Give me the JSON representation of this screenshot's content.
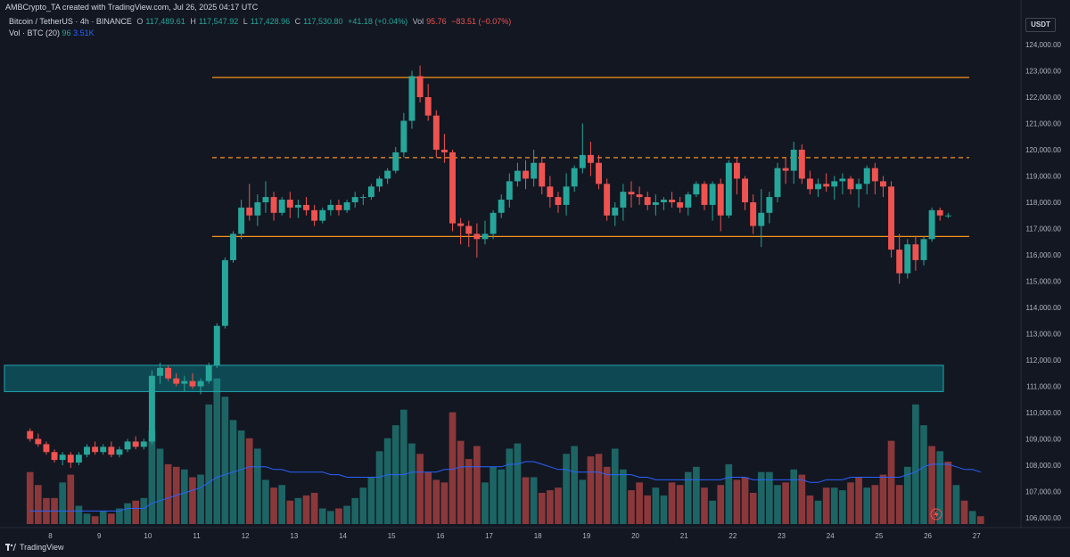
{
  "header": {
    "attribution": "AMBCrypto_TA created with TradingView.com, Jul 26, 2025 04:17 UTC",
    "symbol": "Bitcoin / TetherUS · 4h · BINANCE",
    "o_label": "O",
    "o": "117,489.61",
    "h_label": "H",
    "h": "117,547.92",
    "l_label": "L",
    "l": "117,428.96",
    "c_label": "C",
    "c": "117,530.80",
    "change": "+41.18 (+0.04%)",
    "vol_label": "Vol",
    "vol": "95.76",
    "vol_change": "−83.51 (−0.07%)",
    "vol_indicator": "Vol · BTC (20)",
    "vol_value": "96",
    "vol_ma": "3.51K",
    "currency": "USDT",
    "brand": "TradingView"
  },
  "colors": {
    "up": "#26a69a",
    "down": "#ef5350",
    "level": "#f7931a",
    "zone": "#0e5a63",
    "ma": "#2962ff",
    "bg": "#131722"
  },
  "chart_data": {
    "type": "candlestick",
    "y_ticks": [
      "124,000.00",
      "123,000.00",
      "122,000.00",
      "121,000.00",
      "120,000.00",
      "119,000.00",
      "118,000.00",
      "117,000.00",
      "116,000.00",
      "115,000.00",
      "114,000.00",
      "113,000.00",
      "112,000.00",
      "111,000.00",
      "110,000.00",
      "109,000.00",
      "108,000.00",
      "107,000.00",
      "106,000.00"
    ],
    "ylim": [
      105800,
      124500
    ],
    "x_ticks": [
      "8",
      "9",
      "10",
      "11",
      "12",
      "13",
      "14",
      "15",
      "16",
      "17",
      "18",
      "19",
      "20",
      "21",
      "22",
      "23",
      "24",
      "25",
      "26",
      "27"
    ],
    "start_day": 7.5,
    "candles_per_day": 6,
    "candles": [
      [
        109300,
        109400,
        108900,
        109000
      ],
      [
        109000,
        109200,
        108700,
        108800
      ],
      [
        108800,
        108900,
        108400,
        108500
      ],
      [
        108500,
        108600,
        108100,
        108200
      ],
      [
        108200,
        108500,
        108000,
        108400
      ],
      [
        108400,
        108500,
        107900,
        108100
      ],
      [
        108100,
        108500,
        108000,
        108400
      ],
      [
        108400,
        108800,
        108300,
        108700
      ],
      [
        108700,
        108900,
        108400,
        108500
      ],
      [
        108500,
        108800,
        108400,
        108700
      ],
      [
        108700,
        108900,
        108300,
        108400
      ],
      [
        108400,
        108700,
        108300,
        108600
      ],
      [
        108600,
        109000,
        108500,
        108900
      ],
      [
        108900,
        109100,
        108600,
        108700
      ],
      [
        108700,
        109000,
        108600,
        108900
      ],
      [
        108900,
        111600,
        108800,
        111400
      ],
      [
        111400,
        111900,
        111100,
        111700
      ],
      [
        111700,
        111800,
        111200,
        111300
      ],
      [
        111300,
        111500,
        111000,
        111100
      ],
      [
        111100,
        111400,
        110800,
        111200
      ],
      [
        111200,
        111500,
        110900,
        111000
      ],
      [
        111000,
        111300,
        110700,
        111200
      ],
      [
        111200,
        111900,
        111100,
        111800
      ],
      [
        111800,
        113400,
        111700,
        113300
      ],
      [
        113300,
        115900,
        113200,
        115800
      ],
      [
        115800,
        116900,
        115700,
        116800
      ],
      [
        116800,
        118100,
        116600,
        117800
      ],
      [
        117800,
        118700,
        117300,
        117500
      ],
      [
        117500,
        118300,
        117100,
        118000
      ],
      [
        118000,
        118800,
        117600,
        118200
      ],
      [
        118200,
        118400,
        117300,
        117600
      ],
      [
        117600,
        118200,
        117500,
        118100
      ],
      [
        118100,
        118400,
        117400,
        117800
      ],
      [
        117800,
        118100,
        117400,
        117900
      ],
      [
        117900,
        118200,
        117500,
        117700
      ],
      [
        117700,
        117900,
        117100,
        117300
      ],
      [
        117300,
        117800,
        117200,
        117700
      ],
      [
        117700,
        118100,
        117500,
        117900
      ],
      [
        117900,
        118100,
        117500,
        117700
      ],
      [
        117700,
        118100,
        117600,
        118000
      ],
      [
        118000,
        118400,
        117800,
        118200
      ],
      [
        118200,
        118300,
        117900,
        118200
      ],
      [
        118200,
        118700,
        118100,
        118600
      ],
      [
        118600,
        119000,
        118400,
        118900
      ],
      [
        118900,
        119300,
        118700,
        119200
      ],
      [
        119200,
        120100,
        119100,
        119900
      ],
      [
        119900,
        121400,
        119700,
        121100
      ],
      [
        121100,
        123000,
        120800,
        122800
      ],
      [
        122800,
        123200,
        121800,
        122000
      ],
      [
        122000,
        122500,
        121100,
        121300
      ],
      [
        121300,
        121500,
        119700,
        120000
      ],
      [
        120000,
        120600,
        119500,
        119900
      ],
      [
        119900,
        120000,
        116900,
        117200
      ],
      [
        117200,
        117400,
        116400,
        117100
      ],
      [
        117100,
        117300,
        116300,
        116800
      ],
      [
        116800,
        117200,
        115900,
        116600
      ],
      [
        116600,
        117300,
        116400,
        116800
      ],
      [
        116800,
        117700,
        116600,
        117600
      ],
      [
        117600,
        118300,
        117400,
        118100
      ],
      [
        118100,
        119100,
        117800,
        118800
      ],
      [
        118800,
        119500,
        118600,
        119200
      ],
      [
        119200,
        119600,
        118500,
        118900
      ],
      [
        118900,
        120000,
        118600,
        119500
      ],
      [
        119500,
        119700,
        118300,
        118600
      ],
      [
        118600,
        119000,
        117800,
        118200
      ],
      [
        118200,
        118400,
        117600,
        117900
      ],
      [
        117900,
        119100,
        117500,
        118600
      ],
      [
        118600,
        119400,
        118400,
        119300
      ],
      [
        119300,
        121000,
        119100,
        119800
      ],
      [
        119800,
        120300,
        119000,
        119500
      ],
      [
        119500,
        119800,
        118500,
        118700
      ],
      [
        118700,
        118900,
        117300,
        117500
      ],
      [
        117500,
        118000,
        117100,
        117800
      ],
      [
        117800,
        118700,
        117300,
        118400
      ],
      [
        118400,
        118800,
        117800,
        118300
      ],
      [
        118300,
        118600,
        117900,
        118200
      ],
      [
        118200,
        118400,
        117700,
        117900
      ],
      [
        117900,
        118300,
        117500,
        118000
      ],
      [
        118000,
        118200,
        117700,
        118100
      ],
      [
        118100,
        118400,
        117800,
        118000
      ],
      [
        118000,
        118200,
        117600,
        117800
      ],
      [
        117800,
        118400,
        117500,
        118300
      ],
      [
        118300,
        118800,
        118200,
        118700
      ],
      [
        118700,
        118800,
        117700,
        117900
      ],
      [
        117900,
        118800,
        117300,
        118700
      ],
      [
        118700,
        118900,
        116900,
        117500
      ],
      [
        117500,
        119600,
        117400,
        119500
      ],
      [
        119500,
        119700,
        118300,
        118900
      ],
      [
        118900,
        119000,
        117700,
        118000
      ],
      [
        118000,
        118300,
        116800,
        117100
      ],
      [
        117100,
        118500,
        116300,
        117600
      ],
      [
        117600,
        118400,
        117200,
        118200
      ],
      [
        118200,
        119500,
        118000,
        119300
      ],
      [
        119300,
        119700,
        118700,
        119200
      ],
      [
        119200,
        120300,
        118700,
        120000
      ],
      [
        120000,
        120200,
        118700,
        118900
      ],
      [
        118900,
        119200,
        118300,
        118500
      ],
      [
        118500,
        118900,
        118200,
        118700
      ],
      [
        118700,
        119100,
        118400,
        118600
      ],
      [
        118600,
        119000,
        118100,
        118800
      ],
      [
        118800,
        119100,
        118300,
        118900
      ],
      [
        118900,
        119000,
        118300,
        118500
      ],
      [
        118500,
        118900,
        117800,
        118700
      ],
      [
        118700,
        119400,
        118300,
        119300
      ],
      [
        119300,
        119500,
        118300,
        118800
      ],
      [
        118800,
        119000,
        118200,
        118600
      ],
      [
        118600,
        118800,
        115900,
        116200
      ],
      [
        116200,
        116800,
        114900,
        115300
      ],
      [
        115300,
        116600,
        115100,
        116400
      ],
      [
        116400,
        116700,
        115400,
        115800
      ],
      [
        115800,
        116700,
        115600,
        116600
      ],
      [
        116600,
        117800,
        116500,
        117700
      ],
      [
        117700,
        117800,
        117300,
        117500
      ],
      [
        117500,
        117600,
        117400,
        117500
      ]
    ],
    "volume": [
      20,
      15,
      10,
      10,
      16,
      19,
      7,
      4,
      3,
      5,
      4,
      6,
      8,
      9,
      10,
      36,
      29,
      23,
      22,
      21,
      18,
      19,
      46,
      56,
      49,
      40,
      36,
      33,
      29,
      17,
      14,
      15,
      9,
      10,
      11,
      12,
      6,
      5,
      6,
      7,
      10,
      14,
      18,
      28,
      33,
      38,
      44,
      31,
      27,
      20,
      17,
      16,
      43,
      32,
      25,
      30,
      16,
      22,
      21,
      29,
      31,
      18,
      18,
      12,
      13,
      14,
      27,
      30,
      17,
      26,
      27,
      22,
      29,
      21,
      13,
      16,
      11,
      14,
      11,
      16,
      15,
      20,
      22,
      14,
      9,
      15,
      23,
      17,
      18,
      12,
      20,
      20,
      15,
      16,
      21,
      19,
      11,
      9,
      14,
      14,
      13,
      16,
      18,
      14,
      15,
      19,
      32,
      15,
      22,
      46,
      38,
      30,
      28,
      24,
      15,
      9,
      5,
      3
    ],
    "volume_up": [
      false,
      false,
      false,
      false,
      true,
      false,
      true,
      true,
      false,
      true,
      false,
      true,
      true,
      false,
      true,
      true,
      true,
      false,
      false,
      true,
      false,
      true,
      true,
      true,
      true,
      true,
      true,
      false,
      true,
      true,
      false,
      true,
      false,
      true,
      false,
      false,
      true,
      true,
      false,
      true,
      true,
      true,
      true,
      true,
      true,
      true,
      true,
      true,
      false,
      false,
      false,
      false,
      false,
      false,
      false,
      false,
      true,
      true,
      true,
      true,
      true,
      false,
      true,
      false,
      false,
      false,
      true,
      true,
      true,
      false,
      false,
      false,
      true,
      true,
      false,
      false,
      false,
      true,
      true,
      false,
      false,
      true,
      true,
      false,
      true,
      false,
      true,
      false,
      false,
      false,
      true,
      true,
      true,
      false,
      true,
      false,
      false,
      true,
      false,
      true,
      true,
      false,
      false,
      true,
      false,
      false,
      false,
      false,
      true,
      true,
      true,
      false,
      true,
      false,
      true,
      false,
      true,
      false
    ],
    "volume_ma": [
      5,
      5,
      5,
      5,
      5,
      5,
      5,
      5,
      5,
      5,
      5,
      5,
      6,
      6,
      6,
      8,
      9,
      10,
      11,
      12,
      13,
      14,
      16,
      18,
      19,
      20,
      21,
      22,
      22,
      22,
      21,
      21,
      20,
      20,
      20,
      20,
      20,
      19,
      19,
      18,
      18,
      18,
      18,
      18,
      19,
      19,
      19,
      20,
      20,
      20,
      20,
      21,
      21,
      22,
      22,
      22,
      22,
      22,
      22,
      23,
      23,
      24,
      24,
      23,
      22,
      21,
      21,
      20,
      20,
      20,
      20,
      19,
      19,
      19,
      19,
      18,
      18,
      17,
      17,
      17,
      17,
      17,
      17,
      17,
      17,
      17,
      18,
      18,
      18,
      17,
      17,
      17,
      17,
      17,
      17,
      17,
      16,
      16,
      17,
      17,
      17,
      18,
      18,
      18,
      18,
      18,
      18,
      18,
      19,
      20,
      22,
      23,
      23,
      23,
      22,
      21,
      21,
      20
    ],
    "levels": [
      {
        "price": 122750,
        "style": "solid"
      },
      {
        "price": 119700,
        "style": "dashed"
      },
      {
        "price": 116700,
        "style": "solid"
      }
    ],
    "zone": {
      "top": 111800,
      "bottom": 110800
    }
  }
}
